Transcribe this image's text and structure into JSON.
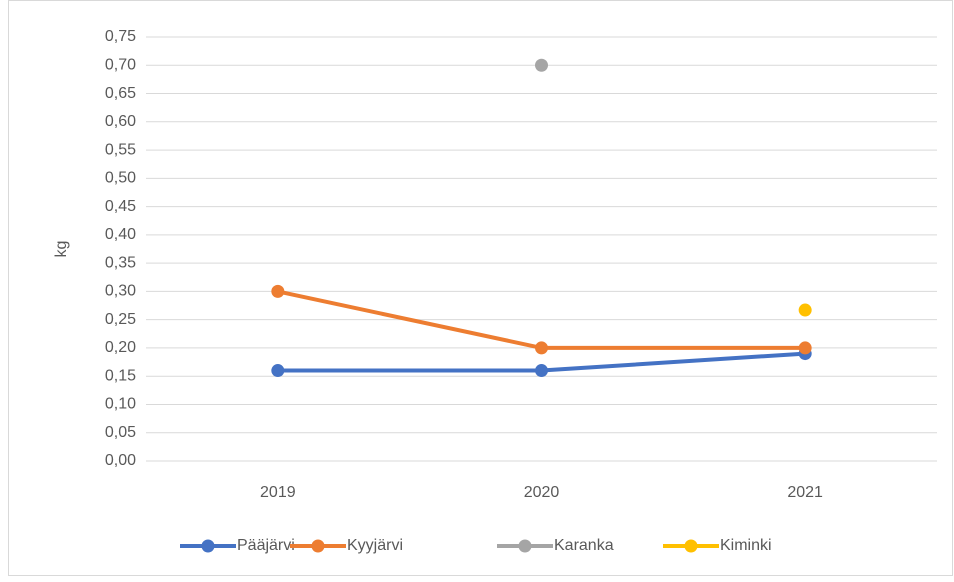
{
  "chart_data": {
    "type": "line",
    "y_label": "kg",
    "categories": [
      "2019",
      "2020",
      "2021"
    ],
    "series": [
      {
        "name": "Pääjärvi",
        "color": "#4472c4",
        "values": [
          0.16,
          0.16,
          0.19
        ]
      },
      {
        "name": "Kyyjärvi",
        "color": "#ed7d31",
        "values": [
          0.3,
          0.2,
          0.2
        ]
      },
      {
        "name": "Karanka",
        "color": "#a5a5a5",
        "values": [
          null,
          0.7,
          null
        ]
      },
      {
        "name": "Kiminki",
        "color": "#ffc000",
        "values": [
          null,
          null,
          0.267
        ]
      }
    ],
    "ylim": [
      0,
      0.75
    ],
    "yticks": [
      {
        "value": 0,
        "label": "0,00"
      },
      {
        "value": 0.05,
        "label": "0,05"
      },
      {
        "value": 0.1,
        "label": "0,10"
      },
      {
        "value": 0.15,
        "label": "0,15"
      },
      {
        "value": 0.2,
        "label": "0,20"
      },
      {
        "value": 0.25,
        "label": "0,25"
      },
      {
        "value": 0.3,
        "label": "0,30"
      },
      {
        "value": 0.35,
        "label": "0,35"
      },
      {
        "value": 0.4,
        "label": "0,40"
      },
      {
        "value": 0.45,
        "label": "0,45"
      },
      {
        "value": 0.5,
        "label": "0,50"
      },
      {
        "value": 0.55,
        "label": "0,55"
      },
      {
        "value": 0.6,
        "label": "0,60"
      },
      {
        "value": 0.65,
        "label": "0,65"
      },
      {
        "value": 0.7,
        "label": "0,70"
      },
      {
        "value": 0.75,
        "label": "0,75"
      }
    ],
    "grid": true,
    "legend": "bottom"
  }
}
